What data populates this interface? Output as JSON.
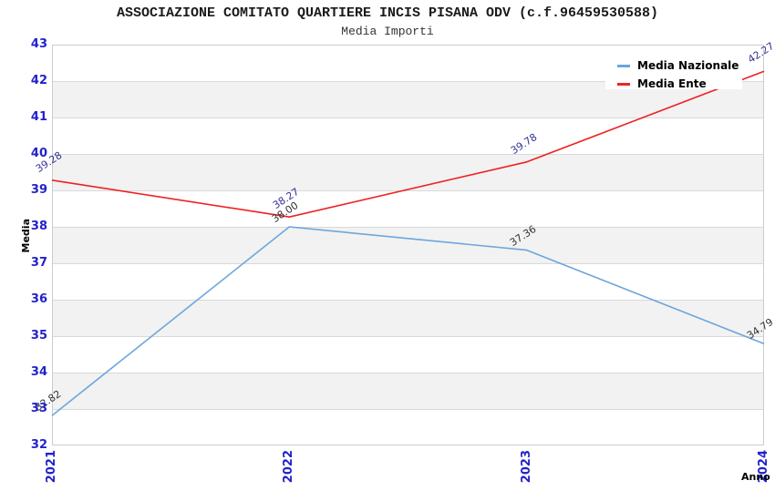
{
  "chart_data": {
    "type": "line",
    "title": "ASSOCIAZIONE COMITATO QUARTIERE INCIS PISANA ODV (c.f.96459530588)",
    "subtitle": "Media Importi",
    "xlabel": "Anno",
    "ylabel": "Media",
    "categories": [
      "2021",
      "2022",
      "2023",
      "2024"
    ],
    "ylim": [
      32,
      43
    ],
    "ytick_step": 1,
    "grid": "horizontal-alternating-bands",
    "legend_position": "top-right-inside",
    "series": [
      {
        "name": "Media Nazionale",
        "values": [
          32.82,
          38.0,
          37.36,
          34.79
        ],
        "point_labels": [
          "32.82",
          "38.00",
          "37.36",
          "34.79"
        ],
        "color": "#6ca6dd",
        "point_label_color": "#333333"
      },
      {
        "name": "Media Ente",
        "values": [
          39.28,
          38.27,
          39.78,
          42.27
        ],
        "point_labels": [
          "39.28",
          "38.27",
          "39.78",
          "42.27"
        ],
        "color": "#ee2222",
        "point_label_color": "#333399"
      }
    ],
    "colors": {
      "tick_label": "#2222cc",
      "band_light": "#ffffff",
      "band_dark": "#f2f2f2",
      "gridline": "#d9d9d9",
      "plot_border": "#cccccc",
      "title": "#1a1a1a",
      "legend_bg": "#ffffff",
      "legend_text": "#000000",
      "axis_title": "#000000"
    }
  }
}
